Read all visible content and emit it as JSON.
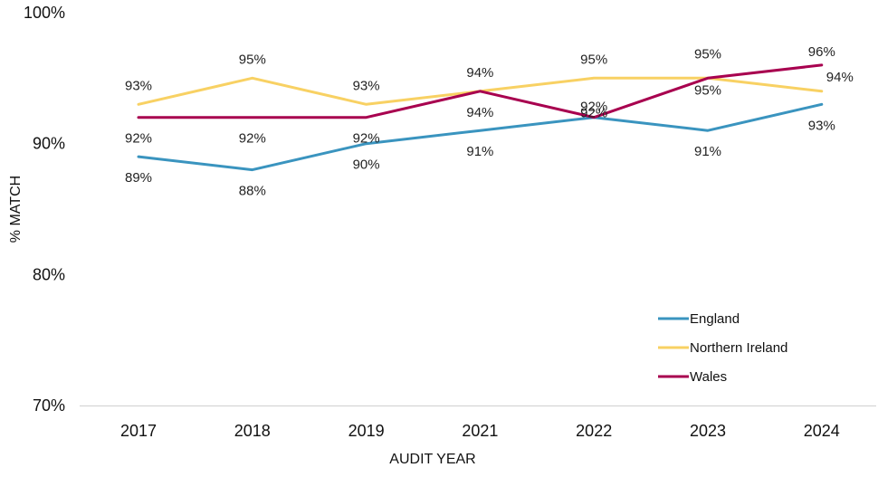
{
  "chart_data": {
    "type": "line",
    "xlabel": "AUDIT YEAR",
    "ylabel": "% MATCH",
    "categories": [
      "2017",
      "2018",
      "2019",
      "2021",
      "2022",
      "2023",
      "2024"
    ],
    "ylim": [
      70,
      100
    ],
    "yticks": [
      70,
      80,
      90,
      100
    ],
    "ytick_labels": [
      "70%",
      "80%",
      "90%",
      "100%"
    ],
    "grid": false,
    "legend_position": "bottom-right",
    "series": [
      {
        "name": "England",
        "color": "#3a94bf",
        "values": [
          89,
          88,
          90,
          91,
          92,
          91,
          93
        ],
        "labels": [
          "89%",
          "88%",
          "90%",
          "91%",
          "92%",
          "91%",
          "93%"
        ]
      },
      {
        "name": "Northern Ireland",
        "color": "#f8d163",
        "values": [
          93,
          95,
          93,
          94,
          95,
          95,
          94
        ],
        "labels": [
          "93%",
          "95%",
          "93%",
          "94%",
          "95%",
          "95%",
          "94%"
        ]
      },
      {
        "name": "Wales",
        "color": "#a8004f",
        "values": [
          92,
          92,
          92,
          94,
          92,
          95,
          96
        ],
        "labels": [
          "92%",
          "92%",
          "92%",
          "94%",
          "92%",
          "95%",
          "96%"
        ]
      }
    ]
  }
}
